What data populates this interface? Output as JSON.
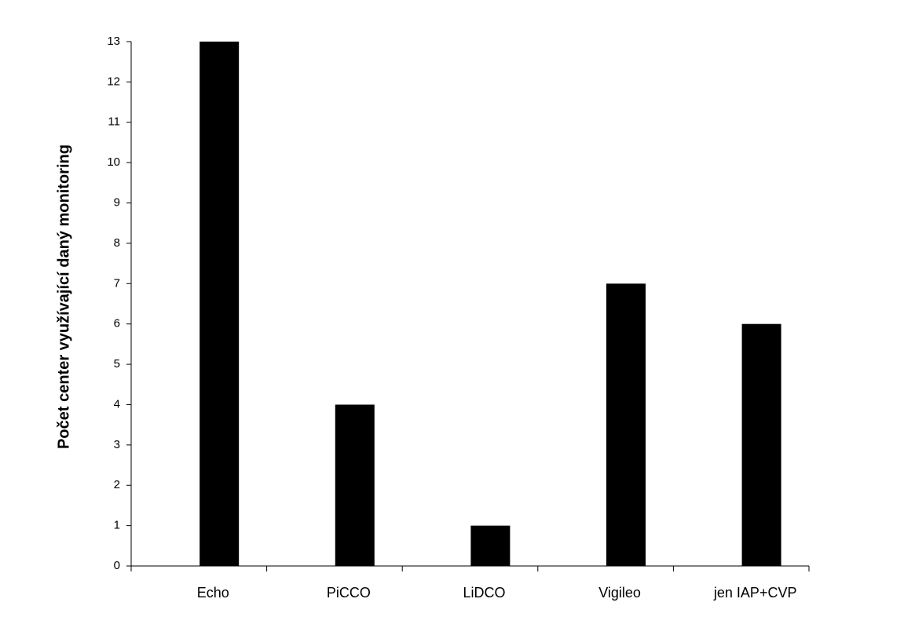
{
  "chart_data": {
    "type": "bar",
    "y_label": "Počet center využívající daný monitoring",
    "categories": [
      "Echo",
      "PiCCO",
      "LiDCO",
      "Vigileo",
      "jen IAP+CVP"
    ],
    "values": [
      13,
      4,
      1,
      7,
      6
    ],
    "color": "#000000",
    "ylim": [
      0,
      13
    ],
    "yticks": [
      0,
      1,
      2,
      3,
      4,
      5,
      6,
      7,
      8,
      9,
      10,
      11,
      12,
      13
    ],
    "grid": false
  }
}
